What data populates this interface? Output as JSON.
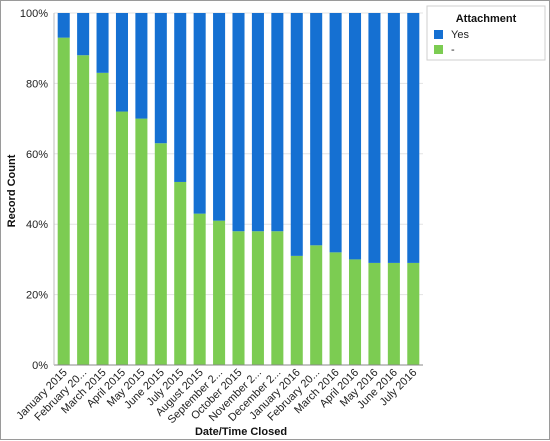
{
  "chart_data": {
    "type": "bar",
    "stacked": true,
    "percent_stacked": true,
    "categories": [
      "January 2015",
      "February 20...",
      "March 2015",
      "April 2015",
      "May 2015",
      "June 2015",
      "July 2015",
      "August 2015",
      "September 2...",
      "October 2015",
      "November 2...",
      "December 2...",
      "January 2016",
      "February 20...",
      "March 2016",
      "April 2016",
      "May 2016",
      "June 2016",
      "July 2016"
    ],
    "series": [
      {
        "name": "Yes",
        "color": "#1570d2",
        "values": [
          7,
          12,
          17,
          28,
          30,
          37,
          48,
          57,
          59,
          62,
          62,
          62,
          69,
          66,
          68,
          70,
          71,
          71,
          71
        ]
      },
      {
        "name": "-",
        "color": "#7ccc52",
        "values": [
          93,
          88,
          83,
          72,
          70,
          63,
          52,
          43,
          41,
          38,
          38,
          38,
          31,
          34,
          32,
          30,
          29,
          29,
          29
        ]
      }
    ],
    "xlabel": "Date/Time Closed",
    "ylabel": "Record Count",
    "ylim": [
      0,
      100
    ],
    "yticks": [
      "0%",
      "20%",
      "40%",
      "60%",
      "80%",
      "100%"
    ],
    "ytick_values": [
      0,
      20,
      40,
      60,
      80,
      100
    ],
    "grid": true,
    "legend": {
      "title": "Attachment",
      "position": "top-right"
    }
  }
}
